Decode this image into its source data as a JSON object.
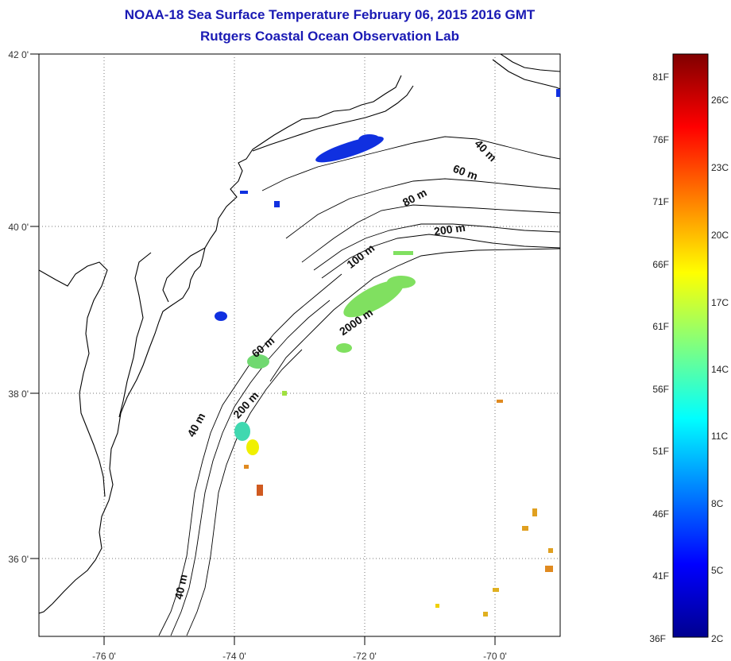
{
  "title": {
    "line1": "NOAA-18 Sea Surface Temperature February 06, 2015 2016 GMT",
    "line2": "Rutgers Coastal Ocean Observation Lab"
  },
  "map": {
    "lon_range": [
      -77,
      -69
    ],
    "lat_range": [
      35,
      42
    ],
    "lon_ticks": [
      {
        "value": -76,
        "label": "-76 0'"
      },
      {
        "value": -74,
        "label": "-74 0'"
      },
      {
        "value": -72,
        "label": "-72 0'"
      },
      {
        "value": -70,
        "label": "-70 0'"
      }
    ],
    "lat_ticks": [
      {
        "value": 42,
        "label": "42 0'"
      },
      {
        "value": 40,
        "label": "40 0'"
      },
      {
        "value": 38,
        "label": "38 0'"
      },
      {
        "value": 36,
        "label": "36 0'"
      }
    ],
    "grid": "dotted",
    "contour_labels": [
      "40 m",
      "60 m",
      "80 m",
      "200 m",
      "100 m",
      "2000 m",
      "60 m",
      "200 m",
      "40 m",
      "40 m"
    ]
  },
  "colorbar": {
    "fahrenheit_labels": [
      "81F",
      "76F",
      "71F",
      "66F",
      "61F",
      "56F",
      "51F",
      "46F",
      "41F",
      "36F"
    ],
    "celsius_labels": [
      "26C",
      "23C",
      "20C",
      "17C",
      "14C",
      "11C",
      "8C",
      "5C",
      "2C"
    ],
    "colormap": "jet",
    "range_f": [
      36,
      84
    ]
  },
  "colors": {
    "title": "#1a1ab4",
    "coast": "#000000",
    "cold_water": "#1030e0",
    "teal_water": "#40d8b0",
    "green_water": "#80e060",
    "yellow_water": "#f0f000",
    "orange_water": "#e08a20"
  }
}
